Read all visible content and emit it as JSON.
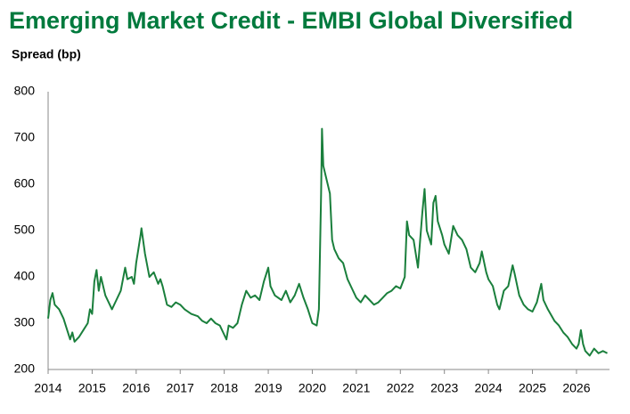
{
  "chart_data": {
    "type": "line",
    "title": "Emerging Market Credit - EMBI Global Diversified",
    "y_label": "Spread (bp)",
    "x": [
      2014.0,
      2014.05,
      2014.1,
      2014.15,
      2014.25,
      2014.35,
      2014.45,
      2014.5,
      2014.55,
      2014.6,
      2014.7,
      2014.8,
      2014.9,
      2014.95,
      2015.0,
      2015.05,
      2015.1,
      2015.15,
      2015.2,
      2015.3,
      2015.4,
      2015.45,
      2015.55,
      2015.65,
      2015.75,
      2015.8,
      2015.9,
      2015.95,
      2016.0,
      2016.05,
      2016.1,
      2016.12,
      2016.2,
      2016.3,
      2016.4,
      2016.5,
      2016.55,
      2016.6,
      2016.7,
      2016.8,
      2016.9,
      2017.0,
      2017.1,
      2017.25,
      2017.4,
      2017.5,
      2017.6,
      2017.7,
      2017.8,
      2017.9,
      2018.0,
      2018.05,
      2018.1,
      2018.2,
      2018.3,
      2018.4,
      2018.5,
      2018.6,
      2018.7,
      2018.8,
      2018.9,
      2018.95,
      2019.0,
      2019.05,
      2019.15,
      2019.3,
      2019.4,
      2019.5,
      2019.6,
      2019.7,
      2019.8,
      2019.9,
      2020.0,
      2020.1,
      2020.15,
      2020.2,
      2020.22,
      2020.25,
      2020.3,
      2020.4,
      2020.45,
      2020.5,
      2020.6,
      2020.7,
      2020.8,
      2020.9,
      2021.0,
      2021.1,
      2021.2,
      2021.3,
      2021.4,
      2021.5,
      2021.6,
      2021.7,
      2021.8,
      2021.9,
      2022.0,
      2022.1,
      2022.15,
      2022.2,
      2022.3,
      2022.4,
      2022.5,
      2022.55,
      2022.6,
      2022.7,
      2022.75,
      2022.8,
      2022.85,
      2022.95,
      2023.0,
      2023.1,
      2023.2,
      2023.3,
      2023.4,
      2023.5,
      2023.6,
      2023.7,
      2023.8,
      2023.85,
      2023.95,
      2024.0,
      2024.1,
      2024.2,
      2024.25,
      2024.35,
      2024.45,
      2024.55,
      2024.6,
      2024.7,
      2024.8,
      2024.9,
      2025.0,
      2025.1,
      2025.2,
      2025.25,
      2025.35,
      2025.5,
      2025.6,
      2025.7,
      2025.8,
      2025.9,
      2026.0,
      2026.05,
      2026.1,
      2026.15,
      2026.2,
      2026.3,
      2026.4,
      2026.5,
      2026.6,
      2026.7
    ],
    "series": [
      {
        "name": "EMBI Global Diversified",
        "color": "#1a7f3c",
        "values": [
          310,
          350,
          365,
          340,
          330,
          310,
          280,
          265,
          280,
          260,
          270,
          285,
          300,
          330,
          320,
          390,
          415,
          370,
          400,
          360,
          340,
          330,
          350,
          370,
          420,
          395,
          400,
          385,
          430,
          460,
          490,
          505,
          450,
          400,
          410,
          385,
          395,
          380,
          340,
          335,
          345,
          340,
          330,
          320,
          315,
          305,
          300,
          310,
          300,
          295,
          275,
          265,
          295,
          290,
          300,
          340,
          370,
          355,
          360,
          350,
          390,
          405,
          420,
          380,
          360,
          350,
          370,
          345,
          360,
          385,
          355,
          330,
          300,
          295,
          330,
          580,
          720,
          640,
          620,
          580,
          480,
          460,
          440,
          430,
          395,
          375,
          355,
          345,
          360,
          350,
          340,
          345,
          355,
          365,
          370,
          380,
          375,
          400,
          520,
          490,
          480,
          420,
          540,
          590,
          500,
          470,
          560,
          575,
          520,
          490,
          470,
          450,
          510,
          490,
          480,
          460,
          420,
          410,
          430,
          455,
          410,
          395,
          380,
          340,
          330,
          370,
          380,
          425,
          405,
          360,
          340,
          330,
          325,
          345,
          385,
          350,
          330,
          305,
          295,
          280,
          270,
          255,
          245,
          255,
          285,
          255,
          240,
          230,
          245,
          235,
          240,
          235
        ]
      }
    ],
    "xlim": [
      2014,
      2026.75
    ],
    "xticks": [
      2014,
      2015,
      2016,
      2017,
      2018,
      2019,
      2020,
      2021,
      2022,
      2023,
      2024,
      2025,
      2026
    ],
    "ylim": [
      200,
      800
    ],
    "yticks": [
      200,
      300,
      400,
      500,
      600,
      700,
      800
    ],
    "grid": false
  }
}
